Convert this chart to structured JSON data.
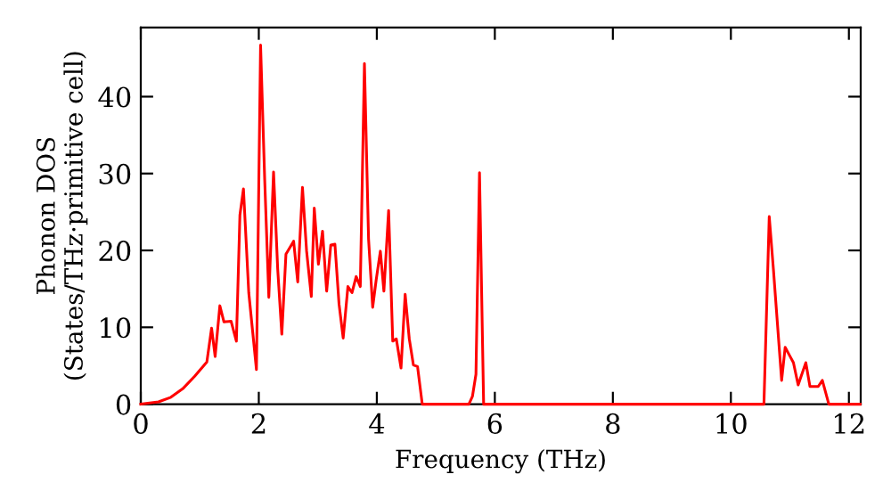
{
  "chart_data": {
    "type": "line",
    "xlabel": "Frequency (THz)",
    "ylabel": "Phonon DOS\n(States/THz·primitive cell)",
    "x": [
      0,
      0.3,
      0.51,
      0.71,
      0.91,
      1.12,
      1.2,
      1.26,
      1.34,
      1.41,
      1.53,
      1.62,
      1.68,
      1.74,
      1.83,
      1.96,
      2.03,
      2.1,
      2.17,
      2.25,
      2.32,
      2.39,
      2.46,
      2.59,
      2.66,
      2.74,
      2.81,
      2.89,
      2.94,
      3.01,
      3.08,
      3.15,
      3.22,
      3.29,
      3.36,
      3.43,
      3.51,
      3.58,
      3.65,
      3.72,
      3.79,
      3.86,
      3.93,
      3.99,
      4.06,
      4.12,
      4.2,
      4.27,
      4.33,
      4.41,
      4.48,
      4.55,
      4.62,
      4.69,
      4.77,
      5.56,
      5.62,
      5.68,
      5.74,
      5.81,
      10.56,
      10.65,
      10.72,
      10.86,
      10.92,
      10.99,
      11.06,
      11.14,
      11.27,
      11.34,
      11.48,
      11.55,
      11.66,
      12.19
    ],
    "series": [
      {
        "color": "#ff0000",
        "values": [
          0,
          0.3,
          0.9,
          2,
          3.6,
          5.5,
          9.9,
          6.2,
          12.8,
          10.7,
          10.8,
          8.2,
          24.6,
          28,
          14.5,
          4.5,
          46.7,
          29.2,
          13.9,
          30.2,
          17.6,
          9.1,
          19.5,
          21.2,
          15.9,
          28.2,
          19.9,
          14,
          25.5,
          18.2,
          22.5,
          14.7,
          20.7,
          20.8,
          13,
          8.6,
          15.3,
          14.5,
          16.6,
          15.3,
          44.3,
          21.5,
          12.6,
          16.2,
          19.9,
          14.7,
          25.2,
          8.2,
          8.5,
          4.7,
          14.3,
          8.5,
          5.1,
          4.9,
          0,
          0,
          1,
          3.9,
          30.1,
          0,
          0,
          24.4,
          17.6,
          3.1,
          7.4,
          6.4,
          5.4,
          2.5,
          5.4,
          2.3,
          2.3,
          3.1,
          0,
          0
        ]
      }
    ],
    "xlim": [
      0,
      12.2
    ],
    "ylim": [
      0,
      49
    ],
    "xticks": [
      0,
      2,
      4,
      6,
      8,
      10,
      12
    ],
    "yticks": [
      0,
      10,
      20,
      30,
      40
    ],
    "grid": false,
    "legend": false,
    "marker": "none",
    "line_style": "solid"
  }
}
